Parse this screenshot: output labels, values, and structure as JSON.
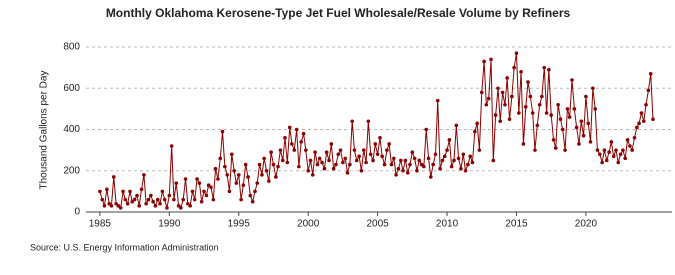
{
  "chart_data": {
    "type": "line",
    "title": "Monthly Oklahoma Kerosene-Type Jet Fuel Wholesale/Resale Volume by Refiners",
    "y_label": "Thousand Gallons per Day",
    "source": "Source: U.S. Energy Information Administration",
    "xlim": [
      1984,
      2026.2
    ],
    "xticks": [
      1985,
      1990,
      1995,
      2000,
      2005,
      2010,
      2015,
      2020
    ],
    "ylim": [
      0,
      800
    ],
    "yticks": [
      0,
      200,
      400,
      600,
      800
    ],
    "grid": true,
    "x": [
      1985,
      1985.17,
      1985.33,
      1985.5,
      1985.67,
      1985.83,
      1986,
      1986.17,
      1986.33,
      1986.5,
      1986.67,
      1986.83,
      1987,
      1987.17,
      1987.33,
      1987.5,
      1987.67,
      1987.83,
      1988,
      1988.17,
      1988.33,
      1988.5,
      1988.67,
      1988.83,
      1989,
      1989.17,
      1989.33,
      1989.5,
      1989.67,
      1989.83,
      1990,
      1990.17,
      1990.33,
      1990.5,
      1990.67,
      1990.83,
      1991,
      1991.17,
      1991.33,
      1991.5,
      1991.67,
      1991.83,
      1992,
      1992.17,
      1992.33,
      1992.5,
      1992.67,
      1992.83,
      1993,
      1993.17,
      1993.33,
      1993.5,
      1993.67,
      1993.83,
      1994,
      1994.17,
      1994.33,
      1994.5,
      1994.67,
      1994.83,
      1995,
      1995.17,
      1995.33,
      1995.5,
      1995.67,
      1995.83,
      1996,
      1996.17,
      1996.33,
      1996.5,
      1996.67,
      1996.83,
      1997,
      1997.17,
      1997.33,
      1997.5,
      1997.67,
      1997.83,
      1998,
      1998.17,
      1998.33,
      1998.5,
      1998.67,
      1998.83,
      1999,
      1999.17,
      1999.33,
      1999.5,
      1999.67,
      1999.83,
      2000,
      2000.17,
      2000.33,
      2000.5,
      2000.67,
      2000.83,
      2001,
      2001.17,
      2001.33,
      2001.5,
      2001.67,
      2001.83,
      2002,
      2002.17,
      2002.33,
      2002.5,
      2002.67,
      2002.83,
      2003,
      2003.17,
      2003.33,
      2003.5,
      2003.67,
      2003.83,
      2004,
      2004.17,
      2004.33,
      2004.5,
      2004.67,
      2004.83,
      2005,
      2005.17,
      2005.33,
      2005.5,
      2005.67,
      2005.83,
      2006,
      2006.17,
      2006.33,
      2006.5,
      2006.67,
      2006.83,
      2007,
      2007.17,
      2007.33,
      2007.5,
      2007.67,
      2007.83,
      2008,
      2008.17,
      2008.33,
      2008.5,
      2008.67,
      2008.83,
      2009,
      2009.17,
      2009.33,
      2009.5,
      2009.67,
      2009.83,
      2010,
      2010.17,
      2010.33,
      2010.5,
      2010.67,
      2010.83,
      2011,
      2011.17,
      2011.33,
      2011.5,
      2011.67,
      2011.83,
      2012,
      2012.17,
      2012.33,
      2012.5,
      2012.67,
      2012.83,
      2013,
      2013.17,
      2013.33,
      2013.5,
      2013.67,
      2013.83,
      2014,
      2014.17,
      2014.33,
      2014.5,
      2014.67,
      2014.83,
      2015,
      2015.17,
      2015.33,
      2015.5,
      2015.67,
      2015.83,
      2016,
      2016.17,
      2016.33,
      2016.5,
      2016.67,
      2016.83,
      2017,
      2017.17,
      2017.33,
      2017.5,
      2017.67,
      2017.83,
      2018,
      2018.17,
      2018.33,
      2018.5,
      2018.67,
      2018.83,
      2019,
      2019.17,
      2019.33,
      2019.5,
      2019.67,
      2019.83,
      2020,
      2020.17,
      2020.33,
      2020.5,
      2020.67,
      2020.83,
      2021,
      2021.17,
      2021.33,
      2021.5,
      2021.67,
      2021.83,
      2022,
      2022.17,
      2022.33,
      2022.5,
      2022.67,
      2022.83,
      2023,
      2023.17,
      2023.33,
      2023.5,
      2023.67,
      2023.83,
      2024,
      2024.17,
      2024.33,
      2024.5,
      2024.67,
      2024.83
    ],
    "series": [
      {
        "color": "#8b0000",
        "values": [
          100,
          60,
          30,
          110,
          40,
          30,
          170,
          40,
          30,
          20,
          100,
          60,
          40,
          100,
          50,
          60,
          80,
          30,
          110,
          180,
          40,
          60,
          80,
          50,
          30,
          60,
          40,
          100,
          60,
          20,
          80,
          320,
          60,
          140,
          30,
          20,
          60,
          160,
          40,
          30,
          100,
          60,
          160,
          140,
          50,
          100,
          80,
          130,
          120,
          60,
          210,
          160,
          260,
          390,
          220,
          180,
          100,
          280,
          200,
          140,
          180,
          60,
          130,
          230,
          170,
          80,
          50,
          100,
          140,
          230,
          180,
          260,
          200,
          150,
          290,
          230,
          170,
          220,
          300,
          250,
          360,
          240,
          410,
          330,
          300,
          400,
          220,
          340,
          380,
          300,
          200,
          250,
          180,
          290,
          230,
          260,
          240,
          210,
          290,
          250,
          330,
          210,
          230,
          280,
          300,
          240,
          260,
          190,
          230,
          440,
          300,
          250,
          270,
          200,
          300,
          240,
          440,
          280,
          250,
          330,
          280,
          360,
          270,
          230,
          300,
          330,
          230,
          260,
          180,
          210,
          250,
          200,
          250,
          190,
          230,
          290,
          260,
          200,
          250,
          230,
          220,
          400,
          260,
          170,
          230,
          280,
          540,
          210,
          250,
          270,
          300,
          350,
          220,
          250,
          420,
          260,
          210,
          280,
          200,
          230,
          270,
          240,
          390,
          430,
          300,
          580,
          730,
          520,
          550,
          740,
          250,
          470,
          600,
          440,
          580,
          520,
          650,
          450,
          560,
          700,
          770,
          480,
          680,
          330,
          510,
          630,
          560,
          480,
          300,
          420,
          520,
          560,
          700,
          480,
          690,
          470,
          350,
          310,
          520,
          450,
          400,
          300,
          500,
          460,
          640,
          500,
          410,
          330,
          440,
          370,
          560,
          430,
          340,
          600,
          500,
          300,
          280,
          240,
          300,
          250,
          290,
          340,
          270,
          300,
          240,
          280,
          300,
          260,
          350,
          320,
          300,
          360,
          410,
          430,
          480,
          440,
          520,
          590,
          670,
          450
        ]
      }
    ]
  }
}
